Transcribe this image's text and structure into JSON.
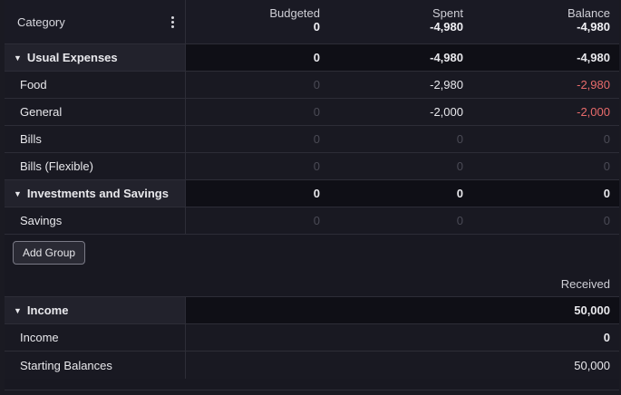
{
  "header": {
    "category_label": "Category",
    "budgeted": {
      "label": "Budgeted",
      "total": "0"
    },
    "spent": {
      "label": "Spent",
      "total": "-4,980"
    },
    "balance": {
      "label": "Balance",
      "total": "-4,980"
    }
  },
  "expense_groups": [
    {
      "name": "Usual Expenses",
      "budgeted": "0",
      "spent": "-4,980",
      "balance": "-4,980",
      "categories": [
        {
          "name": "Food",
          "budgeted": "0",
          "spent": "-2,980",
          "balance": "-2,980"
        },
        {
          "name": "General",
          "budgeted": "0",
          "spent": "-2,000",
          "balance": "-2,000"
        },
        {
          "name": "Bills",
          "budgeted": "0",
          "spent": "0",
          "balance": "0"
        },
        {
          "name": "Bills (Flexible)",
          "budgeted": "0",
          "spent": "0",
          "balance": "0"
        }
      ]
    },
    {
      "name": "Investments and Savings",
      "budgeted": "0",
      "spent": "0",
      "balance": "0",
      "categories": [
        {
          "name": "Savings",
          "budgeted": "0",
          "spent": "0",
          "balance": "0"
        }
      ]
    }
  ],
  "add_group_label": "Add Group",
  "income": {
    "received_label": "Received",
    "group": {
      "name": "Income",
      "received": "50,000"
    },
    "categories": [
      {
        "name": "Income",
        "received": "0"
      },
      {
        "name": "Starting Balances",
        "received": "50,000"
      }
    ]
  },
  "colors": {
    "negative": "#e86b6b",
    "zero": "#4a4a55"
  }
}
